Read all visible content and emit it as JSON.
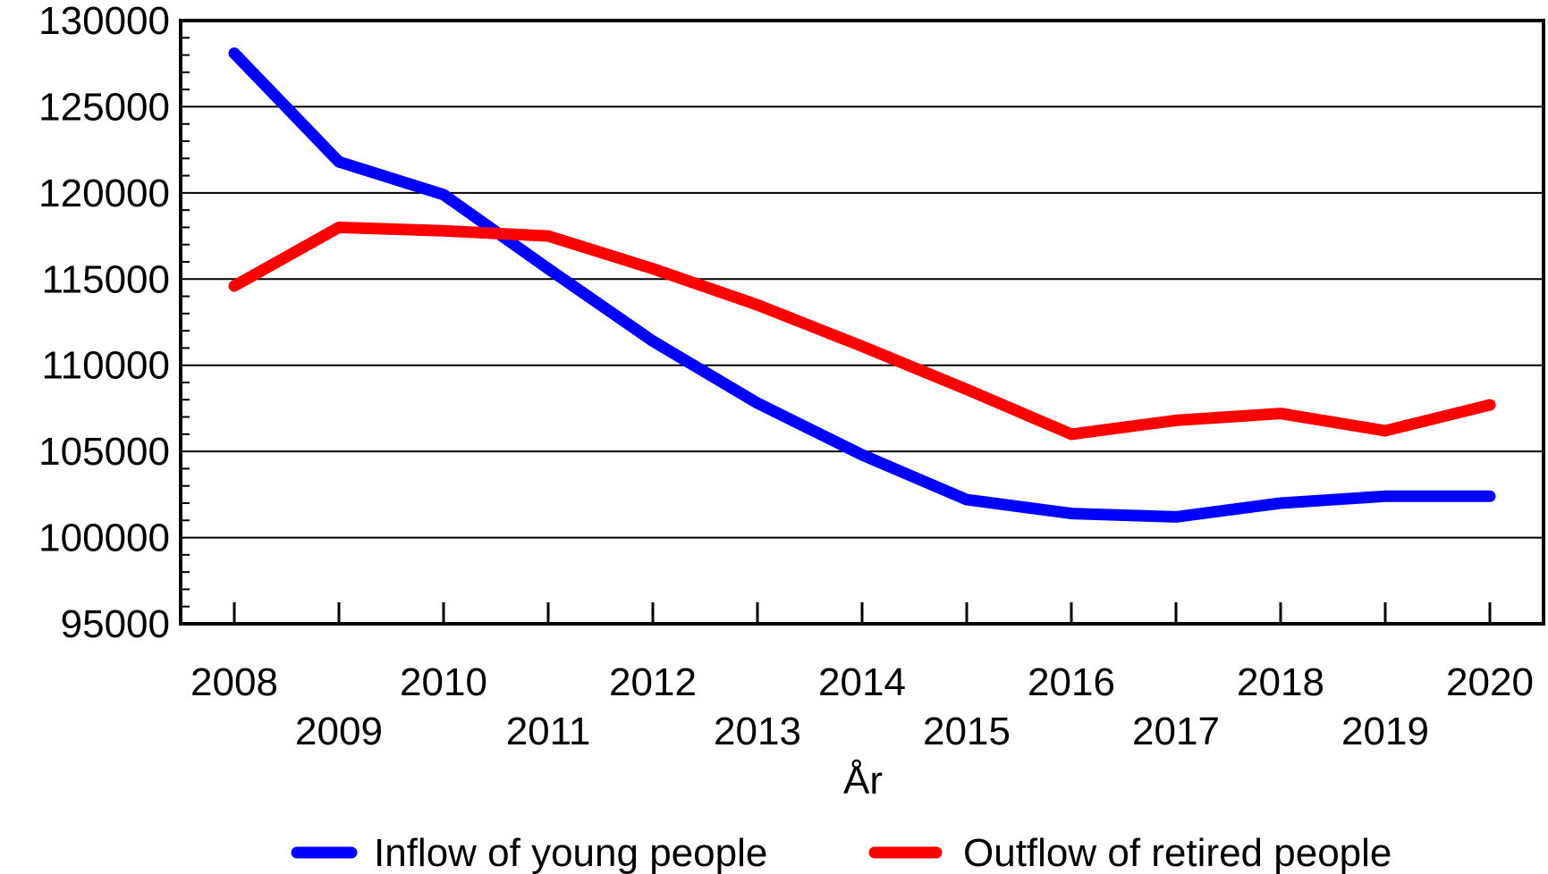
{
  "chart_data": {
    "type": "line",
    "xlabel": "År",
    "ylabel": "",
    "ylim": [
      95000,
      130000
    ],
    "yticks": [
      95000,
      100000,
      105000,
      110000,
      115000,
      120000,
      125000,
      130000
    ],
    "x": [
      2008,
      2009,
      2010,
      2011,
      2012,
      2013,
      2014,
      2015,
      2016,
      2017,
      2018,
      2019,
      2020
    ],
    "grid": "horizontal",
    "legend_position": "bottom",
    "series": [
      {
        "name": "Inflow of young people",
        "color": "#0000ff",
        "values": [
          128100,
          121800,
          119900,
          115600,
          111400,
          107800,
          104800,
          102200,
          101400,
          101200,
          102000,
          102400,
          102400
        ]
      },
      {
        "name": "Outflow of retired people",
        "color": "#ff0000",
        "values": [
          114600,
          118000,
          117800,
          117500,
          115600,
          113500,
          111100,
          108600,
          106000,
          106800,
          107200,
          106200,
          107700
        ]
      }
    ]
  }
}
